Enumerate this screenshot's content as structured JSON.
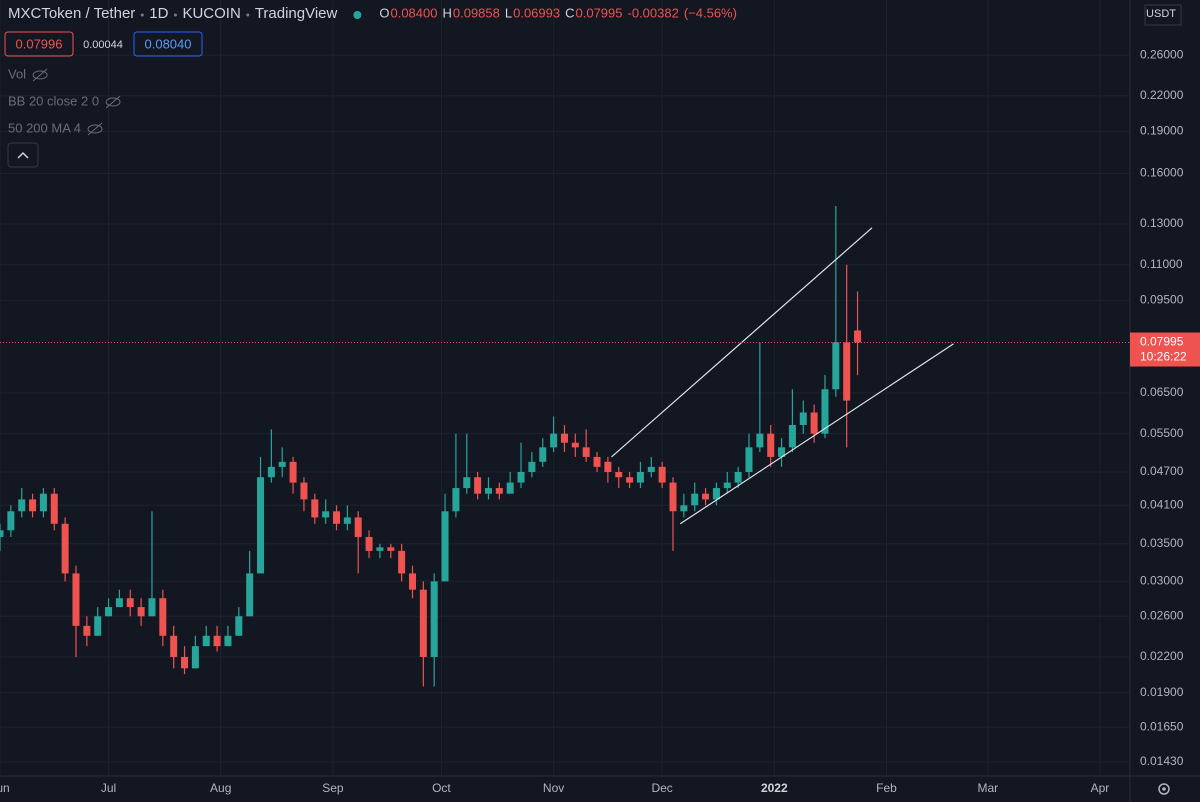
{
  "header": {
    "symbol": "MXCToken / Tether",
    "interval": "1D",
    "exchange": "KUCOIN",
    "source": "TradingView",
    "ohlc": [
      {
        "label": "O",
        "value": "0.08400"
      },
      {
        "label": "H",
        "value": "0.09858"
      },
      {
        "label": "L",
        "value": "0.06993"
      },
      {
        "label": "C",
        "value": "0.07995"
      }
    ],
    "change": "-0.00382",
    "change_pct": "(−4.56%)",
    "bid": "0.07996",
    "spread": "0.00044",
    "ask": "0.08040",
    "indicators": [
      "Vol",
      "BB 20 close 2 0",
      "50 200 MA 4"
    ]
  },
  "chart_data": {
    "type": "candlestick",
    "currency": "USDT",
    "last_price_label": "0.07995",
    "countdown": "10:26:22",
    "up_color": "#26a69a",
    "down_color": "#ef5350",
    "log_scale": true,
    "grid": true,
    "x": [
      0,
      3,
      6,
      9,
      12,
      15,
      18,
      21,
      24,
      27,
      30,
      33,
      36,
      39,
      42,
      45,
      48,
      51,
      54,
      57,
      60,
      63,
      66,
      69,
      72,
      75,
      78,
      81,
      84,
      87,
      90,
      93,
      96,
      99,
      102,
      105,
      108,
      111,
      114,
      117,
      120,
      123,
      126,
      129,
      132,
      135,
      138,
      141,
      144,
      147,
      150,
      153,
      156,
      159,
      162,
      165,
      168,
      171,
      174,
      177,
      180,
      183,
      186,
      189,
      192,
      195,
      198,
      201,
      204,
      207,
      210,
      213,
      216,
      219,
      222,
      225,
      228,
      231,
      234,
      237
    ],
    "open": [
      0.036,
      0.037,
      0.04,
      0.042,
      0.04,
      0.043,
      0.038,
      0.031,
      0.025,
      0.024,
      0.026,
      0.027,
      0.028,
      0.027,
      0.026,
      0.028,
      0.024,
      0.022,
      0.021,
      0.023,
      0.024,
      0.023,
      0.024,
      0.026,
      0.031,
      0.046,
      0.048,
      0.049,
      0.045,
      0.042,
      0.039,
      0.04,
      0.038,
      0.039,
      0.036,
      0.034,
      0.0345,
      0.034,
      0.031,
      0.029,
      0.022,
      0.03,
      0.04,
      0.044,
      0.046,
      0.043,
      0.044,
      0.043,
      0.045,
      0.047,
      0.049,
      0.052,
      0.055,
      0.053,
      0.052,
      0.05,
      0.049,
      0.047,
      0.046,
      0.045,
      0.047,
      0.048,
      0.045,
      0.04,
      0.041,
      0.043,
      0.042,
      0.044,
      0.045,
      0.047,
      0.052,
      0.055,
      0.05,
      0.052,
      0.057,
      0.06,
      0.055,
      0.066,
      0.08,
      0.084
    ],
    "high": [
      0.038,
      0.041,
      0.044,
      0.043,
      0.044,
      0.044,
      0.039,
      0.032,
      0.026,
      0.027,
      0.028,
      0.029,
      0.029,
      0.028,
      0.04,
      0.029,
      0.025,
      0.023,
      0.024,
      0.025,
      0.025,
      0.025,
      0.027,
      0.034,
      0.05,
      0.056,
      0.052,
      0.05,
      0.046,
      0.043,
      0.042,
      0.041,
      0.041,
      0.04,
      0.037,
      0.035,
      0.035,
      0.035,
      0.032,
      0.03,
      0.031,
      0.043,
      0.055,
      0.055,
      0.047,
      0.046,
      0.045,
      0.047,
      0.053,
      0.051,
      0.054,
      0.059,
      0.057,
      0.055,
      0.056,
      0.051,
      0.05,
      0.048,
      0.047,
      0.049,
      0.05,
      0.049,
      0.046,
      0.043,
      0.045,
      0.044,
      0.045,
      0.047,
      0.048,
      0.055,
      0.08,
      0.057,
      0.054,
      0.066,
      0.063,
      0.062,
      0.07,
      0.14,
      0.11,
      0.09858
    ],
    "low": [
      0.034,
      0.036,
      0.039,
      0.039,
      0.039,
      0.037,
      0.03,
      0.022,
      0.023,
      0.024,
      0.026,
      0.027,
      0.026,
      0.025,
      0.026,
      0.023,
      0.021,
      0.0205,
      0.021,
      0.023,
      0.0225,
      0.023,
      0.024,
      0.026,
      0.031,
      0.045,
      0.046,
      0.043,
      0.04,
      0.038,
      0.038,
      0.037,
      0.037,
      0.031,
      0.033,
      0.033,
      0.033,
      0.03,
      0.028,
      0.0195,
      0.0195,
      0.03,
      0.039,
      0.043,
      0.042,
      0.042,
      0.042,
      0.043,
      0.044,
      0.046,
      0.048,
      0.051,
      0.051,
      0.05,
      0.049,
      0.047,
      0.045,
      0.044,
      0.044,
      0.044,
      0.046,
      0.044,
      0.034,
      0.039,
      0.04,
      0.041,
      0.041,
      0.043,
      0.044,
      0.046,
      0.051,
      0.048,
      0.048,
      0.051,
      0.055,
      0.053,
      0.054,
      0.064,
      0.052,
      0.06993
    ],
    "close": [
      0.037,
      0.04,
      0.042,
      0.04,
      0.043,
      0.038,
      0.031,
      0.025,
      0.024,
      0.026,
      0.027,
      0.028,
      0.027,
      0.026,
      0.028,
      0.024,
      0.022,
      0.021,
      0.023,
      0.024,
      0.023,
      0.024,
      0.026,
      0.031,
      0.046,
      0.048,
      0.049,
      0.045,
      0.042,
      0.039,
      0.04,
      0.038,
      0.039,
      0.036,
      0.034,
      0.0345,
      0.034,
      0.031,
      0.029,
      0.022,
      0.03,
      0.04,
      0.044,
      0.046,
      0.043,
      0.044,
      0.043,
      0.045,
      0.047,
      0.049,
      0.052,
      0.055,
      0.053,
      0.052,
      0.05,
      0.048,
      0.047,
      0.046,
      0.045,
      0.047,
      0.048,
      0.045,
      0.04,
      0.041,
      0.043,
      0.042,
      0.044,
      0.045,
      0.047,
      0.052,
      0.055,
      0.05,
      0.052,
      0.057,
      0.06,
      0.055,
      0.066,
      0.08,
      0.063,
      0.07995
    ],
    "trend_lines": [
      {
        "x": [
          169,
          241
        ],
        "y": [
          0.05,
          0.128
        ]
      },
      {
        "x": [
          188,
          263.5
        ],
        "y": [
          0.038,
          0.0795
        ]
      }
    ],
    "xlim": [
      0,
      312.3
    ],
    "ylim": [
      0.0135,
      0.326
    ],
    "xticks": [
      {
        "value": 0,
        "label": "Jun"
      },
      {
        "value": 30,
        "label": "Jul"
      },
      {
        "value": 61,
        "label": "Aug"
      },
      {
        "value": 92,
        "label": "Sep"
      },
      {
        "value": 122,
        "label": "Oct"
      },
      {
        "value": 153,
        "label": "Nov"
      },
      {
        "value": 183,
        "label": "Dec"
      },
      {
        "value": 214,
        "label": "2022"
      },
      {
        "value": 245,
        "label": "Feb"
      },
      {
        "value": 273,
        "label": "Mar"
      },
      {
        "value": 304,
        "label": "Apr"
      }
    ],
    "yticks": [
      {
        "value": 0.26,
        "label": "0.26000"
      },
      {
        "value": 0.22,
        "label": "0.22000"
      },
      {
        "value": 0.19,
        "label": "0.19000"
      },
      {
        "value": 0.16,
        "label": "0.16000"
      },
      {
        "value": 0.13,
        "label": "0.13000"
      },
      {
        "value": 0.11,
        "label": "0.11000"
      },
      {
        "value": 0.095,
        "label": "0.09500"
      },
      {
        "value": 0.065,
        "label": "0.06500"
      },
      {
        "value": 0.055,
        "label": "0.05500"
      },
      {
        "value": 0.047,
        "label": "0.04700"
      },
      {
        "value": 0.041,
        "label": "0.04100"
      },
      {
        "value": 0.035,
        "label": "0.03500"
      },
      {
        "value": 0.03,
        "label": "0.03000"
      },
      {
        "value": 0.026,
        "label": "0.02600"
      },
      {
        "value": 0.022,
        "label": "0.02200"
      },
      {
        "value": 0.019,
        "label": "0.01900"
      },
      {
        "value": 0.0165,
        "label": "0.01650"
      },
      {
        "value": 0.0143,
        "label": "0.01430"
      }
    ]
  }
}
